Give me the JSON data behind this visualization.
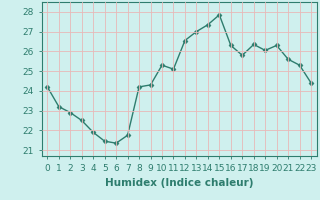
{
  "x": [
    0,
    1,
    2,
    3,
    4,
    5,
    6,
    7,
    8,
    9,
    10,
    11,
    12,
    13,
    14,
    15,
    16,
    17,
    18,
    19,
    20,
    21,
    22,
    23
  ],
  "y": [
    24.2,
    23.2,
    22.9,
    22.5,
    21.9,
    21.45,
    21.35,
    21.75,
    24.2,
    24.3,
    25.3,
    25.1,
    26.55,
    27.0,
    27.35,
    27.85,
    26.3,
    25.8,
    26.35,
    26.05,
    26.3,
    25.6,
    25.3,
    24.4
  ],
  "line_color": "#2e7d6e",
  "marker": "D",
  "marker_size": 2.5,
  "bg_color": "#cff0ee",
  "grid_color": "#e8b8b8",
  "xlabel": "Humidex (Indice chaleur)",
  "ylabel_ticks": [
    21,
    22,
    23,
    24,
    25,
    26,
    27,
    28
  ],
  "xtick_labels": [
    "0",
    "1",
    "2",
    "3",
    "4",
    "5",
    "6",
    "7",
    "8",
    "9",
    "10",
    "11",
    "12",
    "13",
    "14",
    "15",
    "16",
    "17",
    "18",
    "19",
    "20",
    "21",
    "22",
    "23"
  ],
  "ylim": [
    20.7,
    28.5
  ],
  "xlim": [
    -0.5,
    23.5
  ],
  "xlabel_fontsize": 7.5,
  "tick_fontsize": 6.5,
  "line_width": 1.0
}
